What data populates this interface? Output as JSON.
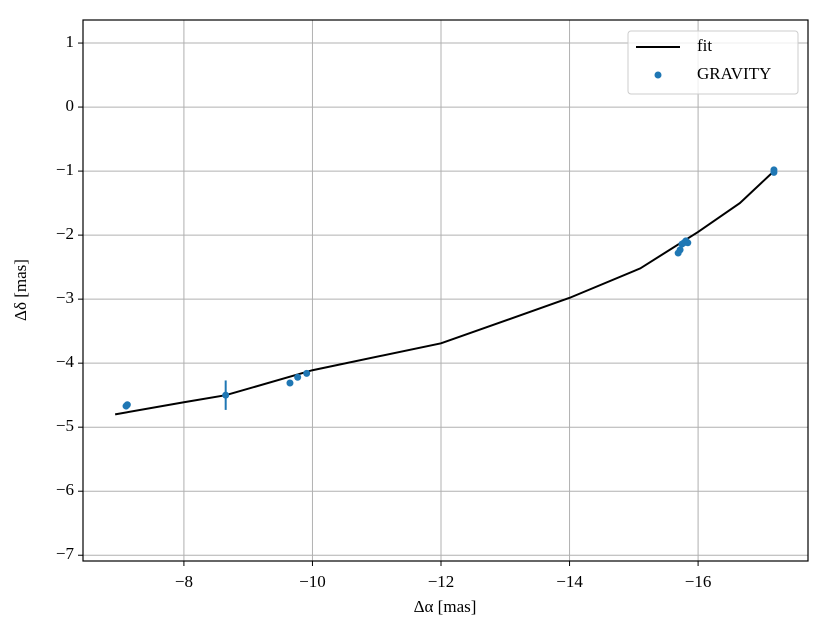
{
  "chart_data": {
    "type": "scatter",
    "xlabel": "Δα [mas]",
    "ylabel": "Δδ [mas]",
    "xlim": [
      -6.43,
      -17.71
    ],
    "ylim": [
      -7.09,
      1.36
    ],
    "xticks": [
      {
        "value": -8,
        "label": "−8"
      },
      {
        "value": -10,
        "label": "−10"
      },
      {
        "value": -12,
        "label": "−12"
      },
      {
        "value": -14,
        "label": "−14"
      },
      {
        "value": -16,
        "label": "−16"
      }
    ],
    "yticks": [
      1,
      0,
      {
        "value": -1,
        "label": "−1"
      },
      {
        "value": -2,
        "label": "−2"
      },
      {
        "value": -3,
        "label": "−3"
      },
      {
        "value": -4,
        "label": "−4"
      },
      {
        "value": -5,
        "label": "−5"
      },
      {
        "value": -6,
        "label": "−6"
      },
      {
        "value": -7,
        "label": "−7"
      }
    ],
    "grid": true,
    "legend": "upper right",
    "series": [
      {
        "name": "fit",
        "type": "line",
        "color": "#000000",
        "x": [
          -6.93,
          -8,
          -8.65,
          -10,
          -12,
          -14,
          -15.1,
          -16,
          -16.65,
          -17.18
        ],
        "y": [
          -4.8,
          -4.61,
          -4.5,
          -4.11,
          -3.69,
          -2.98,
          -2.52,
          -1.95,
          -1.5,
          -1.0
        ]
      },
      {
        "name": "GRAVITY",
        "type": "scatter",
        "color": "#1f77b4",
        "x": [
          -7.12,
          -7.1,
          -8.65,
          -9.65,
          -9.77,
          -9.91,
          -15.72,
          -15.69,
          -15.75,
          -15.81,
          -15.84,
          -15.78,
          -17.18,
          -17.18
        ],
        "y": [
          -4.65,
          -4.67,
          -4.5,
          -4.31,
          -4.22,
          -4.16,
          -2.23,
          -2.28,
          -2.14,
          -2.09,
          -2.12,
          -2.12,
          -0.98,
          -1.02
        ],
        "yerr": [
          0.04,
          0.04,
          0.23,
          0.04,
          0.04,
          0.04,
          0.04,
          0.04,
          0.04,
          0.04,
          0.04,
          0.04,
          0.03,
          0.03
        ]
      }
    ]
  }
}
